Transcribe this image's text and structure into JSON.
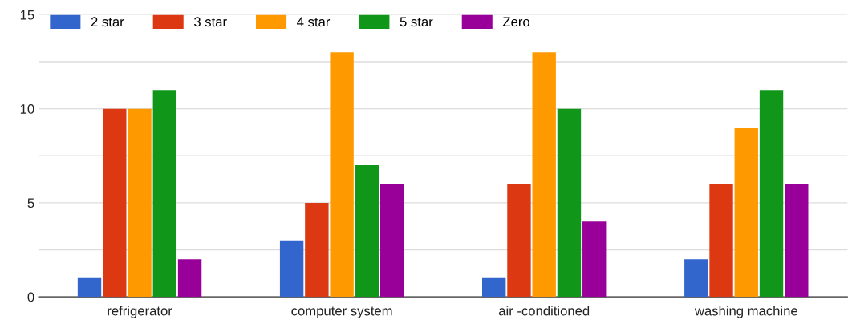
{
  "chart_data": {
    "type": "bar",
    "categories": [
      "refrigerator",
      "computer system",
      "air -conditioned",
      "washing machine"
    ],
    "series": [
      {
        "name": "2 star",
        "color": "#3366cc",
        "values": [
          1,
          3,
          1,
          2
        ]
      },
      {
        "name": "3 star",
        "color": "#dc3912",
        "values": [
          10,
          5,
          6,
          6
        ]
      },
      {
        "name": "4 star",
        "color": "#ff9900",
        "values": [
          10,
          13,
          13,
          9
        ]
      },
      {
        "name": "5 star",
        "color": "#109618",
        "values": [
          11,
          7,
          10,
          11
        ]
      },
      {
        "name": "Zero",
        "color": "#990099",
        "values": [
          2,
          6,
          4,
          6
        ]
      }
    ],
    "ylim": [
      0,
      15
    ],
    "yticks": [
      0,
      {
        "value": 2.5,
        "label": null
      },
      5,
      {
        "value": 7.5,
        "label": null
      },
      10,
      {
        "value": 12.5,
        "label": null
      },
      15
    ],
    "grid": "y",
    "legend": "top left"
  }
}
